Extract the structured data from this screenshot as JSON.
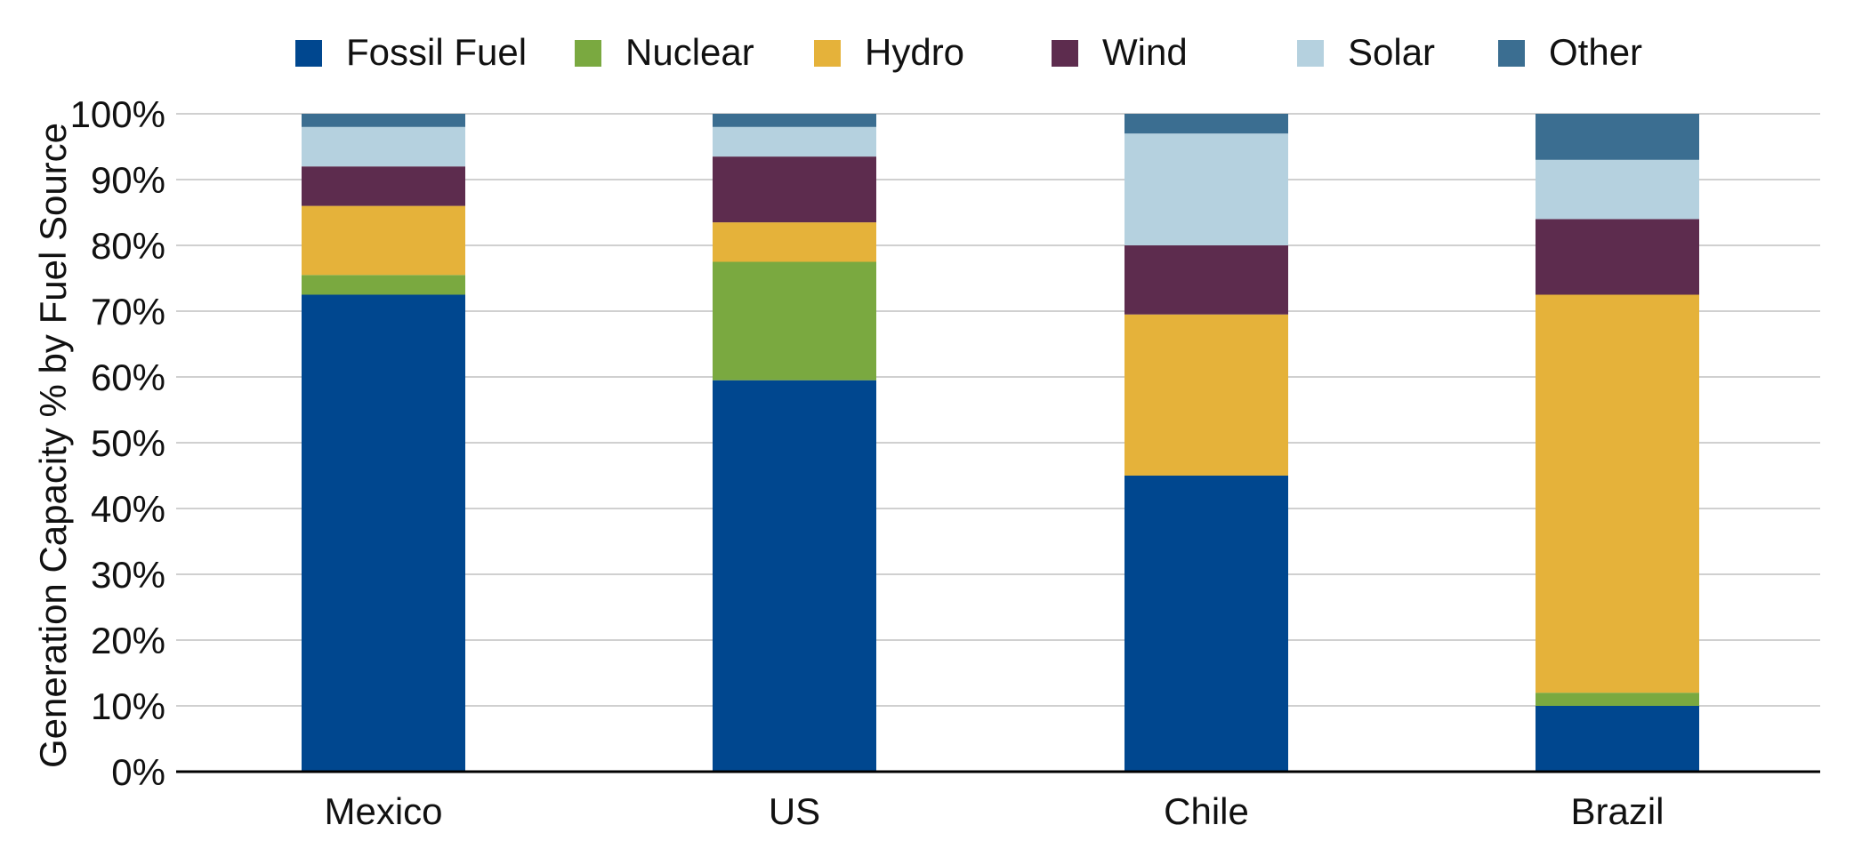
{
  "chart_data": {
    "type": "bar",
    "stacked": true,
    "title": "",
    "xlabel": "",
    "ylabel": "Generation Capacity % by Fuel Source",
    "ylim": [
      0,
      100
    ],
    "ytick_step": 10,
    "ytick_suffix": "%",
    "grid": true,
    "legend_position": "top",
    "categories": [
      "Mexico",
      "US",
      "Chile",
      "Brazil"
    ],
    "series": [
      {
        "name": "Fossil Fuel",
        "color": "#00478f",
        "values": [
          72.5,
          59.5,
          45,
          10
        ]
      },
      {
        "name": "Nuclear",
        "color": "#7aa940",
        "values": [
          3,
          18,
          0,
          2
        ]
      },
      {
        "name": "Hydro",
        "color": "#e5b23a",
        "values": [
          10.5,
          6,
          24.5,
          60.5
        ]
      },
      {
        "name": "Wind",
        "color": "#5d2c4e",
        "values": [
          6,
          10,
          10.5,
          11.5
        ]
      },
      {
        "name": "Solar",
        "color": "#b5d1df",
        "values": [
          6,
          4.5,
          17,
          9
        ]
      },
      {
        "name": "Other",
        "color": "#3b6e91",
        "values": [
          2,
          2,
          3,
          7
        ]
      }
    ]
  }
}
